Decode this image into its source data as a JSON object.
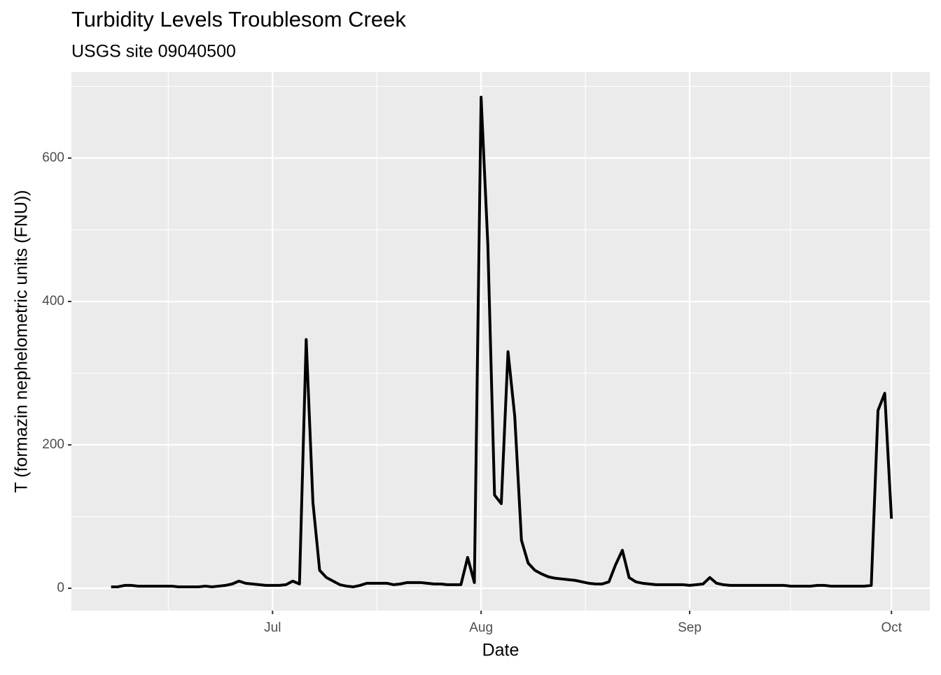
{
  "chart_data": {
    "type": "line",
    "title": "Turbidity Levels Troublesom Creek",
    "subtitle": "USGS site 09040500",
    "x_label": "Date",
    "y_label": "T (formazin nephelometric units (FNU))",
    "x": [
      158,
      159,
      160,
      161,
      162,
      163,
      164,
      165,
      166,
      167,
      168,
      169,
      170,
      171,
      172,
      173,
      174,
      175,
      176,
      177,
      178,
      179,
      180,
      181,
      182,
      183,
      184,
      185,
      186,
      187,
      188,
      189,
      190,
      191,
      192,
      193,
      194,
      195,
      196,
      197,
      198,
      199,
      200,
      201,
      202,
      203,
      204,
      205,
      206,
      207,
      208,
      209,
      210,
      211,
      212,
      213,
      214,
      215,
      216,
      217,
      218,
      219,
      220,
      221,
      222,
      223,
      224,
      225,
      226,
      227,
      228,
      229,
      230,
      231,
      232,
      233,
      234,
      235,
      236,
      237,
      238,
      239,
      240,
      241,
      242,
      243,
      244,
      245,
      246,
      247,
      248,
      249,
      250,
      251,
      252,
      253,
      254,
      255,
      256,
      257,
      258,
      259,
      260,
      261,
      262,
      263,
      264,
      265,
      266,
      267,
      268,
      269,
      270,
      271,
      272,
      273,
      274
    ],
    "series": [
      {
        "name": "Turbidity",
        "color": "#000000",
        "values": [
          2,
          2,
          4,
          4,
          3,
          3,
          3,
          3,
          3,
          3,
          2,
          2,
          2,
          2,
          3,
          2,
          3,
          4,
          6,
          10,
          7,
          6,
          5,
          4,
          4,
          4,
          5,
          10,
          6,
          347,
          120,
          25,
          15,
          10,
          5,
          3,
          2,
          4,
          7,
          7,
          7,
          7,
          5,
          6,
          8,
          8,
          8,
          7,
          6,
          6,
          5,
          5,
          5,
          43,
          8,
          685,
          480,
          130,
          118,
          330,
          240,
          67,
          35,
          25,
          20,
          16,
          14,
          13,
          12,
          11,
          9,
          7,
          6,
          6,
          9,
          33,
          53,
          15,
          9,
          7,
          6,
          5,
          5,
          5,
          5,
          5,
          4,
          5,
          6,
          15,
          7,
          5,
          4,
          4,
          4,
          4,
          4,
          4,
          4,
          4,
          4,
          3,
          3,
          3,
          3,
          4,
          4,
          3,
          3,
          3,
          3,
          3,
          3,
          4,
          248,
          272,
          97
        ]
      }
    ],
    "xlim": [
      152.1,
      279.7
    ],
    "xticks": [
      {
        "value": 182,
        "label": "Jul"
      },
      {
        "value": 213,
        "label": "Aug"
      },
      {
        "value": 244,
        "label": "Sep"
      },
      {
        "value": 274,
        "label": "Oct"
      }
    ],
    "ylim": [
      -31.2,
      720
    ],
    "yticks": [
      0,
      200,
      400,
      600
    ],
    "grid": true
  }
}
